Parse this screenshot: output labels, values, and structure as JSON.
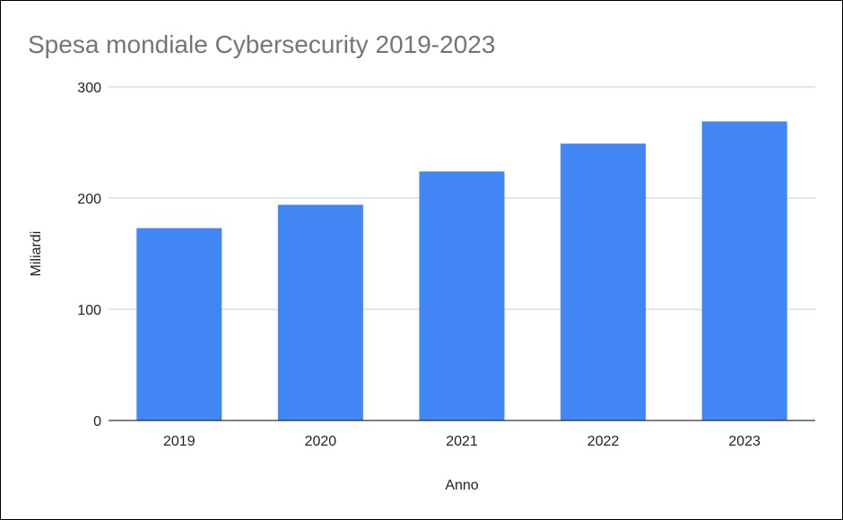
{
  "chart_data": {
    "type": "bar",
    "title": "Spesa mondiale Cybersecurity 2019-2023",
    "xlabel": "Anno",
    "ylabel": "Miliardi",
    "categories": [
      "2019",
      "2020",
      "2021",
      "2022",
      "2023"
    ],
    "values": [
      173,
      194,
      224,
      249,
      269
    ],
    "ylim": [
      0,
      300
    ],
    "yticks": [
      "0",
      "100",
      "200",
      "300"
    ],
    "grid": true,
    "legend": "none",
    "colors": {
      "bar": "#4285f4",
      "grid": "#cccccc",
      "axis": "#333333"
    }
  }
}
